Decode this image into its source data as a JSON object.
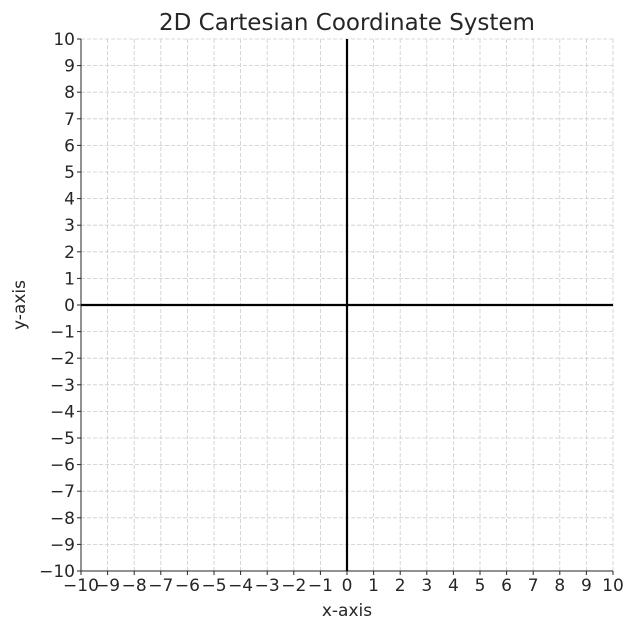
{
  "chart_data": {
    "type": "line",
    "title": "2D Cartesian Coordinate System",
    "xlabel": "x-axis",
    "ylabel": "y-axis",
    "xlim": [
      -10,
      10
    ],
    "ylim": [
      -10,
      10
    ],
    "x_ticks": [
      -10,
      -9,
      -8,
      -7,
      -6,
      -5,
      -4,
      -3,
      -2,
      -1,
      0,
      1,
      2,
      3,
      4,
      5,
      6,
      7,
      8,
      9,
      10
    ],
    "y_ticks": [
      -10,
      -9,
      -8,
      -7,
      -6,
      -5,
      -4,
      -3,
      -2,
      -1,
      0,
      1,
      2,
      3,
      4,
      5,
      6,
      7,
      8,
      9,
      10
    ],
    "x_tick_labels": [
      "−10",
      "−9",
      "−8",
      "−7",
      "−6",
      "−5",
      "−4",
      "−3",
      "−2",
      "−1",
      "0",
      "1",
      "2",
      "3",
      "4",
      "5",
      "6",
      "7",
      "8",
      "9",
      "10"
    ],
    "y_tick_labels": [
      "−10",
      "−9",
      "−8",
      "−7",
      "−6",
      "−5",
      "−4",
      "−3",
      "−2",
      "−1",
      "0",
      "1",
      "2",
      "3",
      "4",
      "5",
      "6",
      "7",
      "8",
      "9",
      "10"
    ],
    "grid": true,
    "grid_style": "dashed",
    "series": [
      {
        "x": [
          -10,
          10
        ],
        "y": [
          0,
          0
        ]
      },
      {
        "x": [
          0,
          0
        ],
        "y": [
          -10,
          10
        ]
      }
    ],
    "colors": {
      "axis_lines": "#000000",
      "grid": "#cccccc",
      "text": "#262626"
    }
  }
}
